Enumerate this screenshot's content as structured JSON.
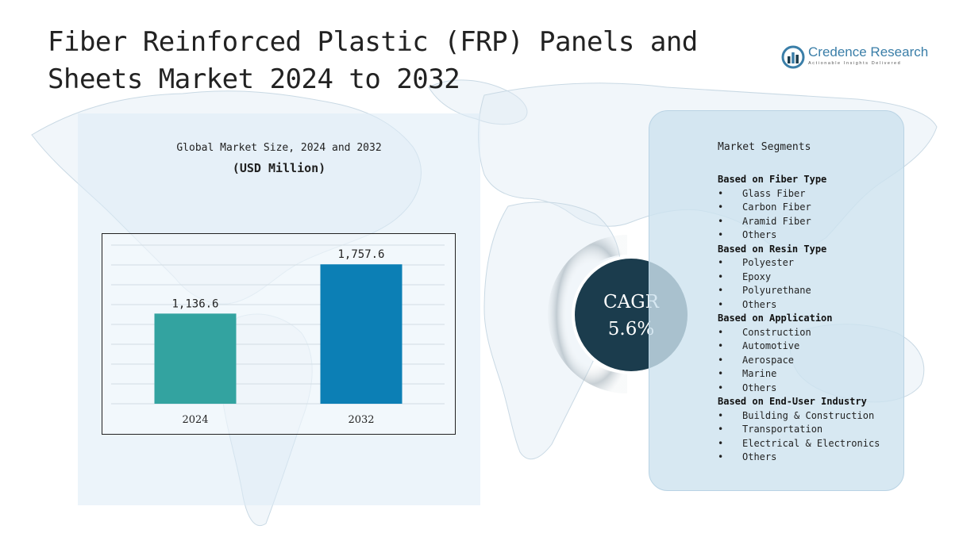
{
  "title": "Fiber Reinforced Plastic (FRP) Panels and Sheets Market 2024 to 2032",
  "brand": {
    "name": "Credence Research",
    "tagline": "Actionable Insights Delivered",
    "color": "#3a7ea8"
  },
  "chart_panel": {
    "title": "Global Market Size, 2024 and 2032",
    "subtitle": "(USD Million)"
  },
  "chart_data": {
    "type": "bar",
    "categories": [
      "2024",
      "2032"
    ],
    "values": [
      1136.6,
      1757.6
    ],
    "value_labels": [
      "1,136.6",
      "1,757.6"
    ],
    "colors": [
      "#33a3a0",
      "#0c7fb5"
    ],
    "title": "Global Market Size, 2024 and 2032",
    "ylabel": "(USD Million)",
    "xlabel": "",
    "ylim": [
      0,
      2000
    ],
    "grid": true,
    "legend": "none"
  },
  "cagr": {
    "label": "CAGR",
    "value": "5.6%"
  },
  "segments": {
    "heading": "Market Segments",
    "groups": [
      {
        "title": "Based on Fiber Type",
        "items": [
          "Glass Fiber",
          "Carbon Fiber",
          "Aramid Fiber",
          "Others"
        ]
      },
      {
        "title": "Based on Resin Type",
        "items": [
          "Polyester",
          "Epoxy",
          "Polyurethane",
          "Others"
        ]
      },
      {
        "title": "Based on Application",
        "items": [
          "Construction",
          "Automotive",
          "Aerospace",
          "Marine",
          "Others"
        ]
      },
      {
        "title": "Based on End-User Industry",
        "items": [
          "Building & Construction",
          "Transportation",
          "Electrical & Electronics",
          "Others"
        ]
      }
    ]
  }
}
